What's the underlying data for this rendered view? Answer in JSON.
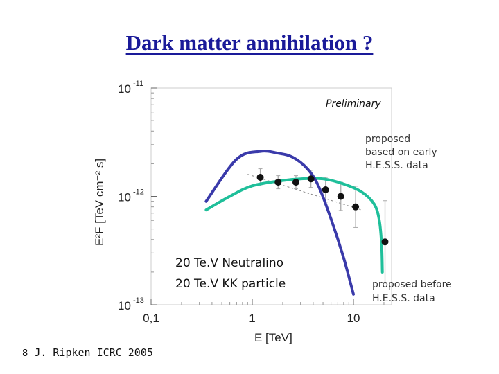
{
  "title": "Dark matter annihilation ?",
  "preliminary_label": "Preliminary",
  "legend": {
    "neutralino": "20 Te.V Neutralino",
    "kk": "20 Te.V KK particle"
  },
  "notes": {
    "early_line1": "proposed",
    "early_line2": "based on early",
    "early_line3": "H.E.S.S. data",
    "before_line1": "proposed before",
    "before_line2": "H.E.S.S. data"
  },
  "citation": {
    "bullet": "8",
    "text": "J. Ripken ICRC 2005"
  },
  "colors": {
    "title": "#1a1a99",
    "neutralino": "#3a3aaa",
    "kk": "#1fbf9a",
    "data": "#111111",
    "error_bar": "#aaaaaa"
  },
  "chart_data": {
    "type": "scatter",
    "xlabel": "E [TeV]",
    "ylabel": "E²F [TeV cm⁻² s]",
    "xscale": "log",
    "yscale": "log",
    "xlim": [
      0.1,
      20
    ],
    "ylim": [
      1e-13,
      1e-11
    ],
    "x_ticks": [
      "0,1",
      "1",
      "10"
    ],
    "y_tick_mantissa": [
      "10",
      "10",
      "10"
    ],
    "y_tick_exponents": [
      "-11",
      "-12",
      "-13"
    ],
    "series": [
      {
        "name": "20 Te.V Neutralino",
        "points": [
          [
            0.35,
            9e-13
          ],
          [
            0.7,
            2.2e-12
          ],
          [
            1.2,
            2.6e-12
          ],
          [
            1.8,
            2.5e-12
          ],
          [
            2.5,
            2.3e-12
          ],
          [
            3.5,
            1.8e-12
          ],
          [
            4.5,
            1.25e-12
          ],
          [
            6,
            6.2e-13
          ],
          [
            8,
            2.7e-13
          ],
          [
            10,
            1.25e-13
          ]
        ]
      },
      {
        "name": "20 Te.V KK particle",
        "points": [
          [
            0.35,
            7.5e-13
          ],
          [
            0.6,
            1e-12
          ],
          [
            1.0,
            1.25e-12
          ],
          [
            2.0,
            1.4e-12
          ],
          [
            3.0,
            1.45e-12
          ],
          [
            5.0,
            1.45e-12
          ],
          [
            8.0,
            1.3e-12
          ],
          [
            12,
            1.1e-12
          ],
          [
            16,
            8.5e-13
          ],
          [
            18,
            6e-13
          ],
          [
            19,
            3.5e-13
          ],
          [
            19.3,
            2e-13
          ]
        ]
      },
      {
        "name": "",
        "points": [
          [
            1.2,
            1.5e-12
          ],
          [
            1.8,
            1.35e-12
          ],
          [
            2.7,
            1.35e-12
          ],
          [
            3.8,
            1.45e-12
          ],
          [
            5.3,
            1.15e-12
          ],
          [
            7.5,
            1e-12
          ],
          [
            10.5,
            8e-13
          ],
          [
            20.5,
            3.8e-13
          ]
        ]
      }
    ]
  }
}
